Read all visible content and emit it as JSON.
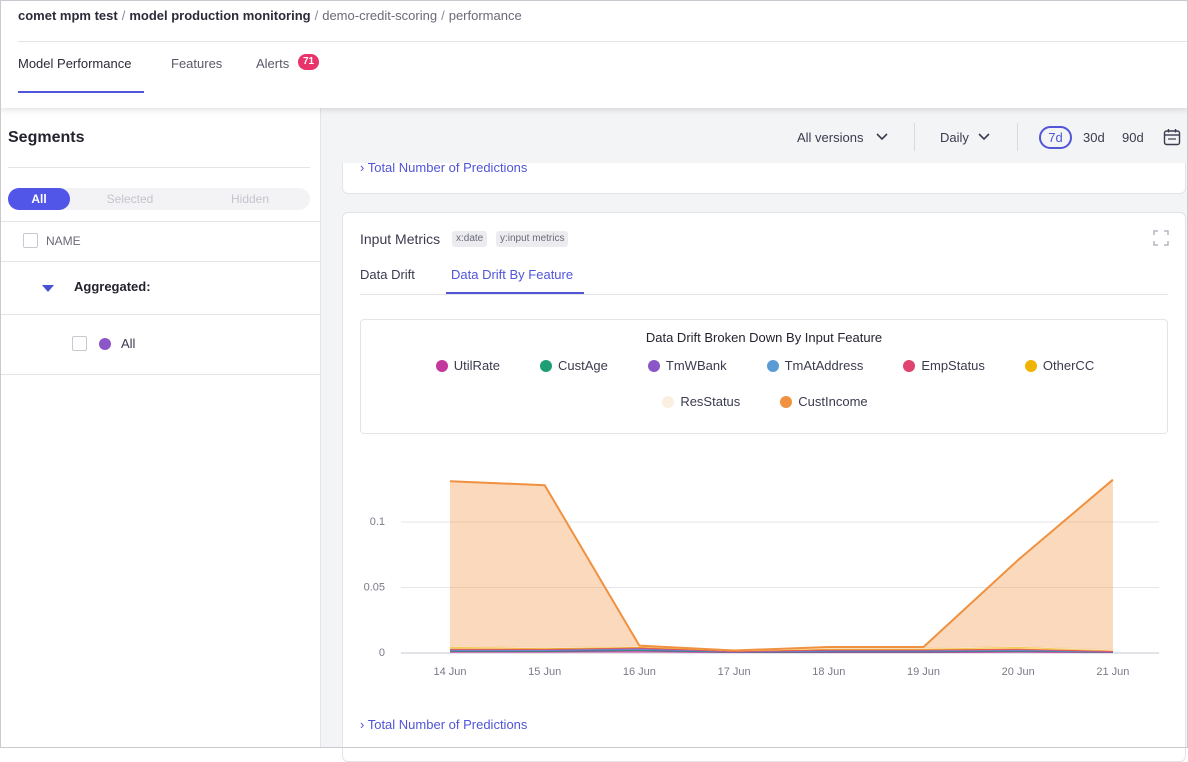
{
  "header": {
    "breadcrumb": [
      "comet mpm test",
      "model production monitoring",
      "demo-credit-scoring",
      "performance"
    ],
    "separator": "/",
    "tabs": [
      "Model Performance",
      "Features",
      "Alerts"
    ],
    "alerts_count": 71
  },
  "sidebar": {
    "title": "Segments",
    "filters": [
      "All",
      "Selected",
      "Hidden"
    ],
    "column": "NAME",
    "group": "Aggregated:",
    "segment": "All"
  },
  "toolbar": {
    "version": "All versions",
    "granularity": "Daily",
    "ranges": [
      "7d",
      "30d",
      "90d"
    ]
  },
  "sections": [
    "Total Number of Predictions",
    "Total Number of Predictions"
  ],
  "card": {
    "title": "Input Metrics",
    "tags": [
      "x:date",
      "y:input metrics"
    ],
    "tabs": [
      "Data Drift",
      "Data Drift By Feature"
    ]
  },
  "chart_data": {
    "type": "stacked_area",
    "title": "Data Drift Broken Down By Input Feature",
    "categories": [
      "14 Jun",
      "15 Jun",
      "16 Jun",
      "17 Jun",
      "18 Jun",
      "19 Jun",
      "20 Jun",
      "21 Jun"
    ],
    "ylim": [
      0,
      0.14
    ],
    "yticks": [
      0,
      0.05,
      0.1
    ],
    "grid": true,
    "series": [
      {
        "name": "UtilRate",
        "color": "#c2389c",
        "values": [
          0.001,
          0.001,
          0.0015,
          0.0005,
          0.0005,
          0.0005,
          0.001,
          0.0005
        ]
      },
      {
        "name": "CustAge",
        "color": "#1e9e75",
        "values": [
          0.0005,
          0.0005,
          0.0005,
          0.0002,
          0.0005,
          0.0005,
          0.0005,
          0.0002
        ]
      },
      {
        "name": "TmWBank",
        "color": "#8a56c8",
        "values": [
          0.0005,
          0.0005,
          0.001,
          0.0002,
          0.0005,
          0.0005,
          0.0005,
          0.0002
        ]
      },
      {
        "name": "TmAtAddress",
        "color": "#5b9bd5",
        "values": [
          0.0003,
          0.0003,
          0.0003,
          0.0001,
          0.0003,
          0.0003,
          0.0003,
          0.0001
        ]
      },
      {
        "name": "EmpStatus",
        "color": "#e0446e",
        "values": [
          0.0005,
          0.0005,
          0.0005,
          0.0002,
          0.0005,
          0.0005,
          0.0005,
          0.0002
        ]
      },
      {
        "name": "OtherCC",
        "color": "#f0b400",
        "values": [
          0.002,
          0.001,
          0.001,
          0.0005,
          0.001,
          0.001,
          0.002,
          0.001
        ]
      },
      {
        "name": "ResStatus",
        "color": "#fbefe2",
        "values": [
          0.0003,
          0.0003,
          0.0003,
          0.0001,
          0.0003,
          0.0003,
          0.0003,
          0.0001
        ]
      },
      {
        "name": "CustIncome",
        "color": "#f0913f",
        "values": [
          0.126,
          0.124,
          0.0005,
          0.0001,
          0.001,
          0.001,
          0.066,
          0.13
        ]
      }
    ]
  }
}
